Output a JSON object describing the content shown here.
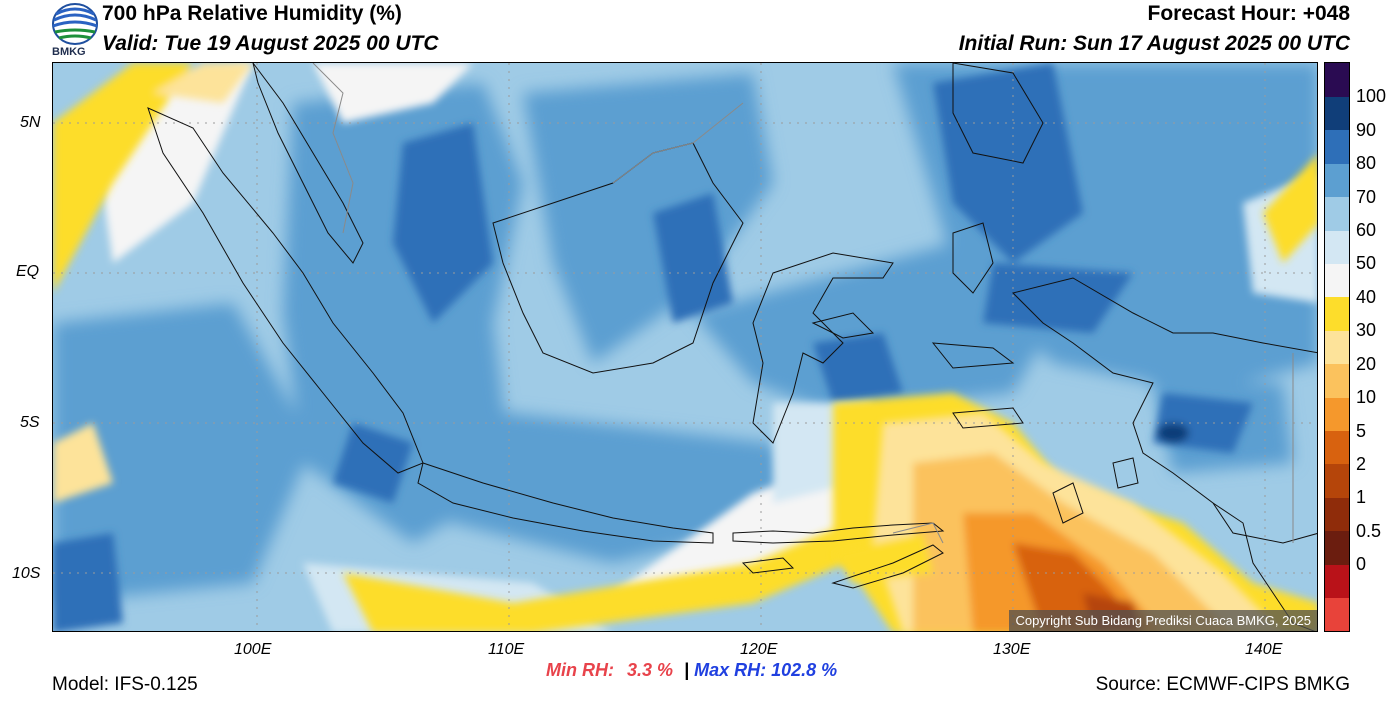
{
  "header": {
    "title": "700 hPa Relative Humidity (%)",
    "valid": "Valid: Tue 19 August 2025 00 UTC",
    "forecast_hour": "Forecast Hour: +048",
    "initial_run": "Initial Run: Sun 17 August 2025 00 UTC",
    "logo_text": "BMKG"
  },
  "map": {
    "lat_labels": [
      "5N",
      "EQ",
      "5S",
      "10S"
    ],
    "lon_labels": [
      "100E",
      "110E",
      "120E",
      "130E",
      "140E"
    ],
    "copyright": "Copyright Sub Bidang Prediksi Cuaca BMKG, 2025"
  },
  "colorbar": {
    "labels": [
      "100",
      "90",
      "80",
      "70",
      "60",
      "50",
      "40",
      "30",
      "20",
      "10",
      "5",
      "2",
      "1",
      "0.5",
      "0"
    ],
    "colors": [
      "#e8433a",
      "#b91219",
      "#6b1d0f",
      "#8f2c0a",
      "#b5450a",
      "#d8620f",
      "#f5982c",
      "#fbc25d",
      "#fde39a",
      "#fddd2b",
      "#f5f5f5",
      "#d3e7f3",
      "#9fcbe6",
      "#5c9fd1",
      "#2e6fb8",
      "#103e79",
      "#2a0b52"
    ]
  },
  "stats": {
    "min_label": "Min RH:",
    "min_value": "3.3 %",
    "separator": "|",
    "max_label": "Max RH:",
    "max_value": "102.8 %"
  },
  "footer": {
    "model": "Model: IFS-0.125",
    "source": "Source: ECMWF-CIPS BMKG"
  }
}
